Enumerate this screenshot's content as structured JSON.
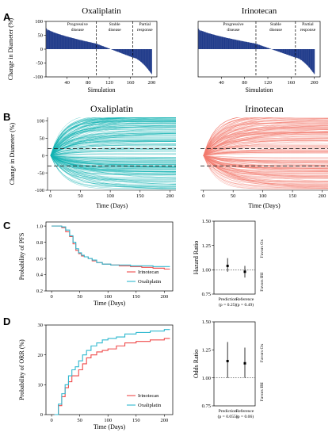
{
  "panel_labels": [
    "A",
    "B",
    "C",
    "D"
  ],
  "chart_data": [
    {
      "type": "bar",
      "panel": "A",
      "title": "Oxaliplatin",
      "xlabel": "Simulation",
      "ylabel": "Change in Diameter (%)",
      "xlim": [
        0,
        210
      ],
      "ylim": [
        -100,
        100
      ],
      "xticks": [
        "40",
        "80",
        "120",
        "160",
        "200"
      ],
      "yticks": [
        "100",
        "50",
        "0",
        "-50",
        "-100"
      ],
      "regions": [
        "Progressive disease",
        "Stable disease",
        "Partial response"
      ],
      "region_bounds": [
        95,
        164
      ],
      "n_sims": 200,
      "max_change": 75,
      "min_change": -90,
      "color": "#1f3a8a"
    },
    {
      "type": "bar",
      "panel": "A",
      "title": "Irinotecan",
      "xlabel": "Simulation",
      "ylabel": "",
      "xlim": [
        0,
        210
      ],
      "ylim": [
        -100,
        100
      ],
      "xticks": [
        "40",
        "80",
        "120",
        "160",
        "200"
      ],
      "yticks": [],
      "regions": [
        "Progressive disease",
        "Stable disease",
        "Partial response"
      ],
      "region_bounds": [
        99,
        167
      ],
      "n_sims": 200,
      "max_change": 73,
      "min_change": -90,
      "color": "#1f3a8a"
    },
    {
      "type": "line",
      "panel": "B",
      "title": "Oxaliplatin",
      "xlabel": "Time (Days)",
      "ylabel": "Change in Diameter (%)",
      "xlim": [
        -5,
        210
      ],
      "ylim": [
        -100,
        110
      ],
      "xticks": [
        "0",
        "50",
        "100",
        "150",
        "200"
      ],
      "yticks": [
        "100",
        "50",
        "0",
        "-50",
        "-100"
      ],
      "reference_lines": [
        20,
        -30
      ],
      "n_trajectories": 200,
      "color": "#12b3b3"
    },
    {
      "type": "line",
      "panel": "B",
      "title": "Irinotecan",
      "xlabel": "Time (Days)",
      "ylabel": "",
      "xlim": [
        -5,
        210
      ],
      "ylim": [
        -100,
        110
      ],
      "xticks": [
        "0",
        "50",
        "100",
        "150",
        "200"
      ],
      "yticks": [],
      "reference_lines": [
        20,
        -30
      ],
      "n_trajectories": 200,
      "color": "#f27a6e"
    },
    {
      "type": "line",
      "panel": "C",
      "xlabel": "Time (Days)",
      "ylabel": "Probability of PFS",
      "xlim": [
        -10,
        215
      ],
      "ylim": [
        0.2,
        1.05
      ],
      "xticks": [
        "0",
        "50",
        "100",
        "150",
        "200"
      ],
      "yticks": [
        "1.0",
        "0.8",
        "0.6",
        "0.4",
        "0.2"
      ],
      "legend_position": "bottom-right",
      "series": [
        {
          "name": "Irinotecan",
          "color": "#ef4b4b",
          "x": [
            0,
            12,
            18,
            25,
            32,
            38,
            43,
            48,
            53,
            58,
            65,
            72,
            80,
            90,
            105,
            120,
            140,
            160,
            180,
            200,
            210
          ],
          "y": [
            1.0,
            1.0,
            0.98,
            0.93,
            0.87,
            0.78,
            0.7,
            0.66,
            0.63,
            0.62,
            0.6,
            0.57,
            0.55,
            0.53,
            0.52,
            0.51,
            0.5,
            0.49,
            0.48,
            0.47,
            0.47
          ]
        },
        {
          "name": "Oxaliplatin",
          "color": "#2fb8cf",
          "x": [
            0,
            12,
            18,
            25,
            32,
            38,
            43,
            48,
            53,
            58,
            65,
            72,
            80,
            90,
            105,
            120,
            140,
            160,
            180,
            200,
            210
          ],
          "y": [
            1.0,
            1.0,
            0.99,
            0.95,
            0.88,
            0.8,
            0.72,
            0.67,
            0.64,
            0.62,
            0.6,
            0.58,
            0.55,
            0.53,
            0.52,
            0.52,
            0.51,
            0.51,
            0.5,
            0.5,
            0.5
          ]
        }
      ]
    },
    {
      "type": "scatter",
      "panel": "C",
      "ylabel": "Hazard Ratio",
      "ylim": [
        0.75,
        1.5
      ],
      "yticks": [
        "1.50",
        "1.25",
        "1.00",
        "0.75"
      ],
      "reference_value": 1.0,
      "side_labels": [
        "Favors Ox",
        "Favors IRI"
      ],
      "categories": [
        "Prediction",
        "Reference"
      ],
      "pvalues": [
        "(p = 0.25)",
        "(p = 0.49)"
      ],
      "estimates": [
        1.04,
        0.98
      ],
      "ci_low": [
        0.98,
        0.92
      ],
      "ci_high": [
        1.12,
        1.04
      ]
    },
    {
      "type": "line",
      "panel": "D",
      "xlabel": "Time (Days)",
      "ylabel": "Probability of ORR (%)",
      "xlim": [
        -10,
        215
      ],
      "ylim": [
        0,
        30
      ],
      "xticks": [
        "0",
        "50",
        "100",
        "150",
        "200"
      ],
      "yticks": [
        "30",
        "20",
        "10",
        "0"
      ],
      "legend_position": "bottom-right",
      "series": [
        {
          "name": "Irinotecan",
          "color": "#ef4b4b",
          "x": [
            5,
            12,
            18,
            24,
            30,
            36,
            42,
            48,
            55,
            62,
            70,
            80,
            90,
            100,
            115,
            130,
            150,
            175,
            200,
            210
          ],
          "y": [
            0,
            3,
            6,
            9,
            11,
            13,
            13,
            15,
            17,
            19,
            20,
            21,
            21.5,
            22,
            23,
            24,
            24.5,
            25,
            25.5,
            25.5
          ]
        },
        {
          "name": "Oxaliplatin",
          "color": "#2fb8cf",
          "x": [
            5,
            12,
            18,
            24,
            30,
            36,
            42,
            48,
            55,
            62,
            70,
            80,
            90,
            100,
            115,
            130,
            150,
            175,
            200,
            210
          ],
          "y": [
            0,
            3.5,
            7,
            10,
            13,
            15,
            16,
            18,
            20,
            21.5,
            23,
            24,
            25,
            25.5,
            26,
            27,
            27.5,
            28,
            28.5,
            28.5
          ]
        }
      ]
    },
    {
      "type": "scatter",
      "panel": "D",
      "ylabel": "Odds Ratio",
      "ylim": [
        0.75,
        1.5
      ],
      "yticks": [
        "1.50",
        "1.25",
        "1.00",
        "0.75"
      ],
      "reference_value": 1.0,
      "side_labels": [
        "Favors Ox",
        "Favors IRI"
      ],
      "categories": [
        "Prediction",
        "Reference"
      ],
      "pvalues": [
        "(p = 0.055)",
        "(p = 0.06)"
      ],
      "estimates": [
        1.15,
        1.13
      ],
      "ci_low": [
        1.0,
        1.0
      ],
      "ci_high": [
        1.32,
        1.27
      ]
    }
  ]
}
